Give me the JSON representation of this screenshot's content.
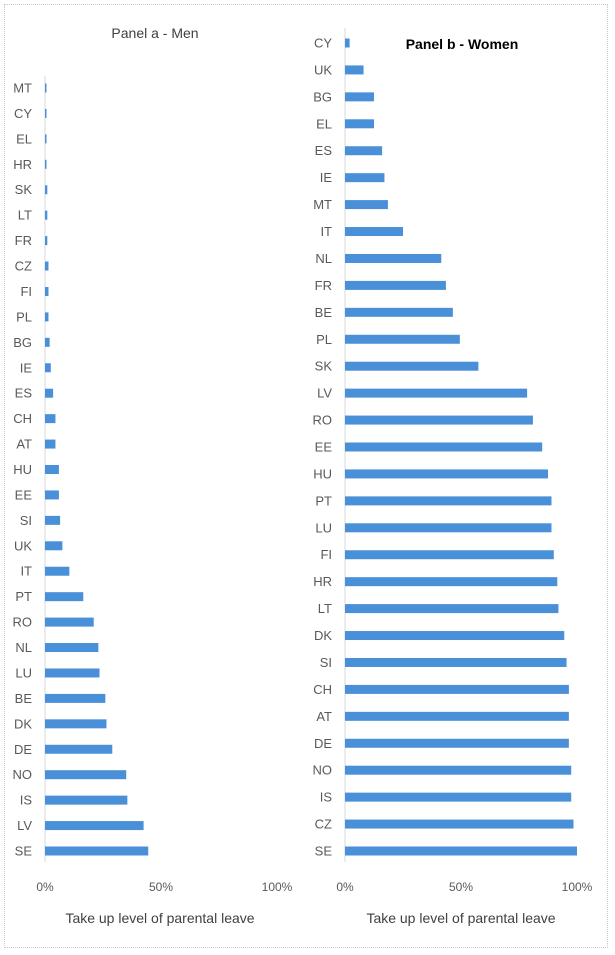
{
  "chart_data": [
    {
      "type": "bar",
      "orientation": "horizontal",
      "title": "Panel a - Men",
      "xlabel": "Take up level of parental leave",
      "xlim": [
        0,
        100
      ],
      "xticks": [
        "0%",
        "50%",
        "100%"
      ],
      "bar_color": "#4a90d9",
      "categories": [
        "MT",
        "CY",
        "EL",
        "HR",
        "SK",
        "LT",
        "FR",
        "CZ",
        "FI",
        "PL",
        "BG",
        "IE",
        "ES",
        "CH",
        "AT",
        "HU",
        "EE",
        "SI",
        "UK",
        "IT",
        "PT",
        "RO",
        "NL",
        "LU",
        "BE",
        "DK",
        "DE",
        "NO",
        "IS",
        "LV",
        "SE"
      ],
      "values": [
        0.3,
        0.5,
        0.5,
        0.5,
        1,
        1,
        1,
        1.5,
        1.5,
        1.5,
        2,
        2.5,
        3.5,
        4.5,
        4.5,
        6,
        6,
        6.5,
        7.5,
        10.5,
        16.5,
        21,
        23,
        23.5,
        26,
        26.5,
        29,
        35,
        35.5,
        42.5,
        44.5
      ]
    },
    {
      "type": "bar",
      "orientation": "horizontal",
      "title": "Panel b - Women",
      "xlabel": "Take up level of parental leave",
      "xlim": [
        0,
        100
      ],
      "xticks": [
        "0%",
        "50%",
        "100%"
      ],
      "bar_color": "#4a90d9",
      "categories": [
        "CY",
        "UK",
        "BG",
        "EL",
        "ES",
        "IE",
        "MT",
        "IT",
        "NL",
        "FR",
        "BE",
        "PL",
        "SK",
        "LV",
        "RO",
        "EE",
        "HU",
        "PT",
        "LU",
        "FI",
        "HR",
        "LT",
        "DK",
        "SI",
        "CH",
        "AT",
        "DE",
        "NO",
        "IS",
        "CZ",
        "SE"
      ],
      "values": [
        2,
        8,
        12.5,
        12.5,
        16,
        17,
        18.5,
        25,
        41.5,
        43.5,
        46.5,
        49.5,
        57.5,
        78.5,
        81,
        85,
        87.5,
        89,
        89,
        90,
        91.5,
        92,
        94.5,
        95.5,
        96.5,
        96.5,
        96.5,
        97.5,
        97.5,
        98.5,
        100
      ]
    }
  ]
}
